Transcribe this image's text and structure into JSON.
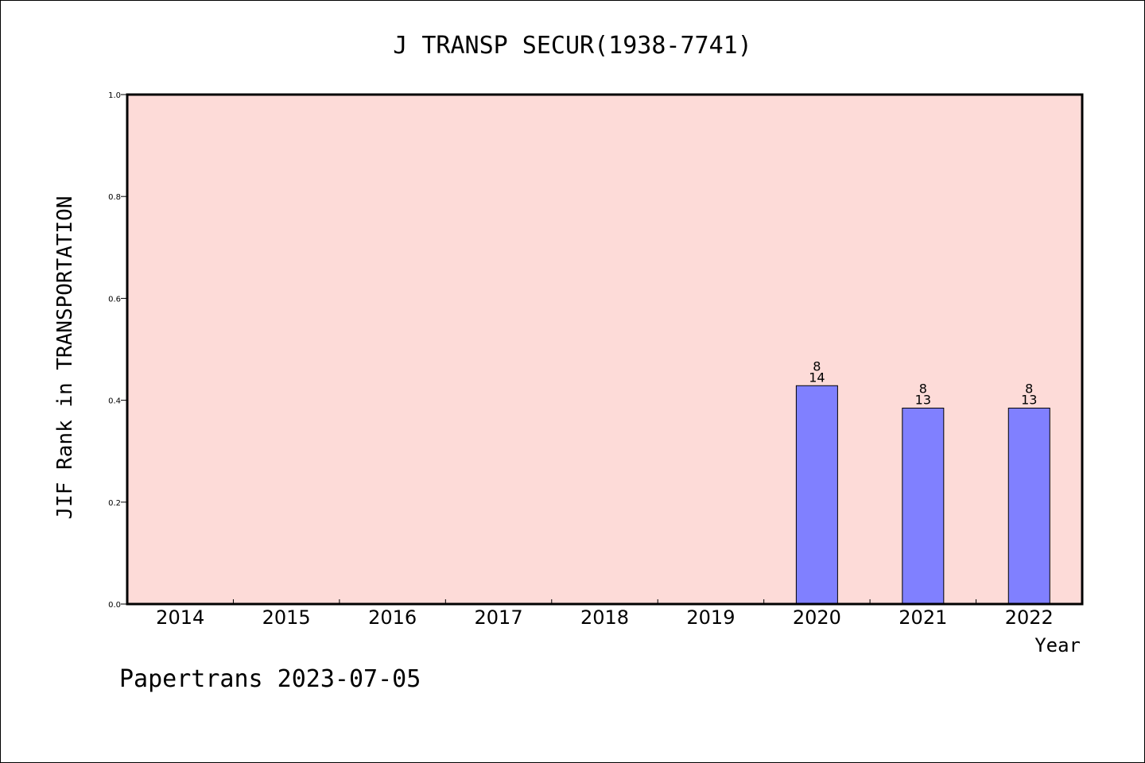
{
  "chart_data": {
    "type": "bar",
    "title": "J TRANSP SECUR(1938-7741)",
    "xlabel": "Year",
    "ylabel": "JIF Rank in TRANSPORTATION",
    "categories": [
      "2014",
      "2015",
      "2016",
      "2017",
      "2018",
      "2019",
      "2020",
      "2021",
      "2022"
    ],
    "values": [
      null,
      null,
      null,
      null,
      null,
      null,
      0.4286,
      0.3846,
      0.3846
    ],
    "rank": [
      null,
      null,
      null,
      null,
      null,
      null,
      "8",
      "8",
      "8"
    ],
    "total": [
      null,
      null,
      null,
      null,
      null,
      null,
      "14",
      "13",
      "13"
    ],
    "ylim": [
      0,
      1.0
    ],
    "yticks": [
      "0.0",
      "0.2",
      "0.4",
      "0.6",
      "0.8",
      "1.0"
    ],
    "grid": false,
    "colors": {
      "plot_bg": "#fddbd8",
      "bar": "#8080ff",
      "axis": "#000000"
    }
  },
  "footer": {
    "source": "Papertrans 2023-07-05"
  }
}
